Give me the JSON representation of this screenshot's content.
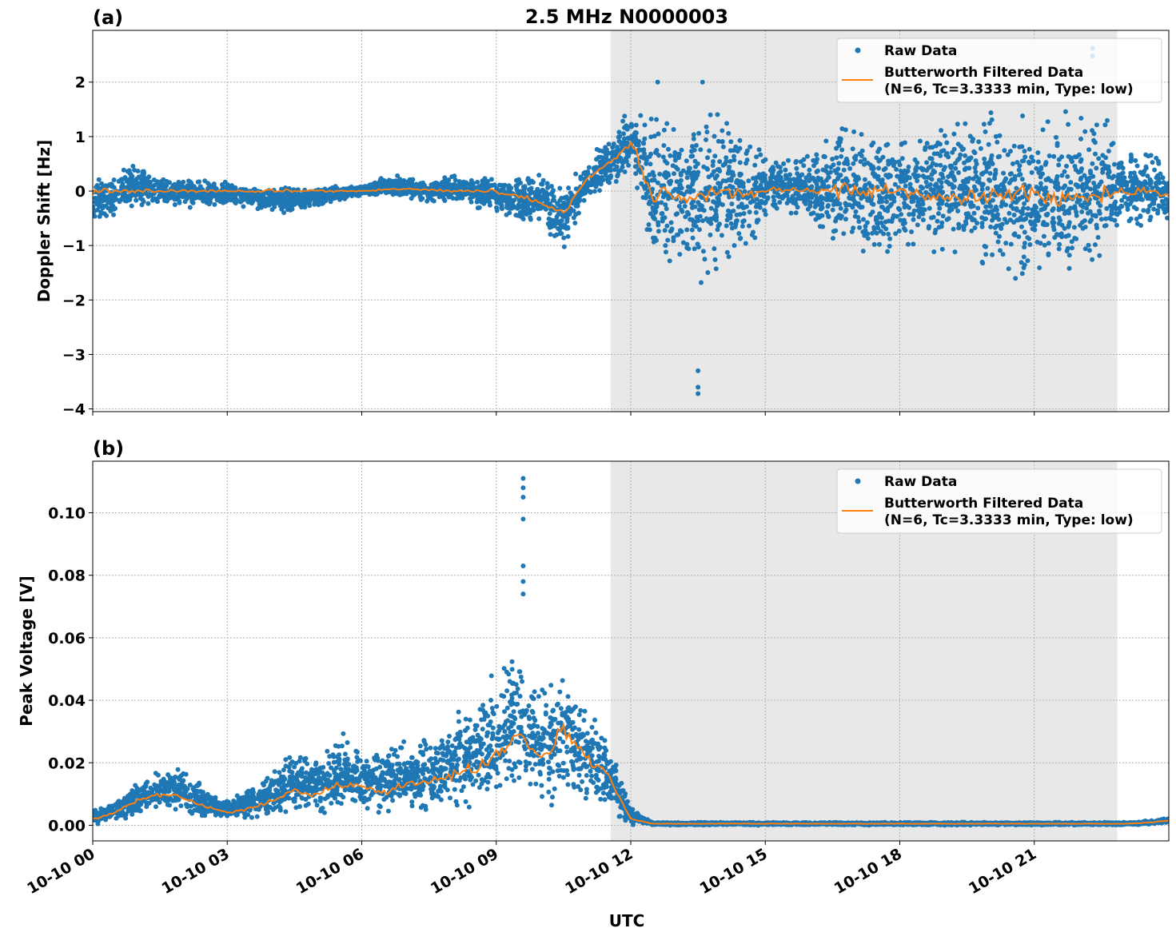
{
  "title": "2.5 MHz N0000003",
  "colors": {
    "raw": "#1f77b4",
    "filtered": "#ff7f0e",
    "shade": "#e8e8e8"
  },
  "chart_data": [
    {
      "type": "scatter",
      "panel_label": "(a)",
      "ylabel": "Doppler Shift [Hz]",
      "xlabel": "",
      "xlim_hours": [
        0,
        24
      ],
      "ylim": [
        -4.05,
        2.95
      ],
      "yticks": [
        2,
        1,
        0,
        -1,
        -2,
        -3,
        -4
      ],
      "ytick_labels": [
        "2",
        "1",
        "0",
        "−1",
        "−2",
        "−3",
        "−4"
      ],
      "grid": true,
      "shaded_span_hours": [
        11.55,
        22.85
      ],
      "legend": {
        "placement": "top-right",
        "raw": "Raw Data",
        "filtered_line1": "Butterworth Filtered Data",
        "filtered_line2": "(N=6, Tc=3.3333 min, Type: low)"
      },
      "bins": [
        [
          0,
          0,
          -0.8,
          0.3
        ],
        [
          0.5,
          0,
          -0.5,
          0.4
        ],
        [
          1,
          0,
          -0.3,
          0.5
        ],
        [
          1.5,
          0,
          -0.3,
          0.3
        ],
        [
          2,
          0,
          -0.3,
          0.3
        ],
        [
          2.5,
          0,
          -0.3,
          0.2
        ],
        [
          3,
          0,
          -0.3,
          0.2
        ],
        [
          3.5,
          0,
          -0.3,
          0.1
        ],
        [
          4,
          0,
          -0.4,
          0.1
        ],
        [
          4.5,
          0,
          -0.4,
          0.1
        ],
        [
          5,
          0,
          -0.3,
          0.1
        ],
        [
          5.5,
          0,
          -0.2,
          0.1
        ],
        [
          6,
          0,
          -0.1,
          0.1
        ],
        [
          6.5,
          0.02,
          -0.1,
          0.3
        ],
        [
          7,
          0.05,
          -0.2,
          0.3
        ],
        [
          7.5,
          0.02,
          -0.2,
          0.2
        ],
        [
          8,
          0,
          -0.2,
          0.3
        ],
        [
          8.5,
          0.02,
          -0.3,
          0.3
        ],
        [
          9,
          0,
          -0.4,
          0.2
        ],
        [
          9.5,
          -0.1,
          -0.6,
          0.3
        ],
        [
          10,
          -0.2,
          -0.7,
          0.4
        ],
        [
          10.5,
          -0.4,
          -1.1,
          0
        ],
        [
          11,
          0.2,
          -0.3,
          0.6
        ],
        [
          11.5,
          0.5,
          0,
          1.0
        ],
        [
          12,
          0.9,
          0.2,
          1.6
        ],
        [
          12.5,
          -0.1,
          -1.5,
          1.5
        ],
        [
          13,
          0,
          -1.5,
          1.6
        ],
        [
          13.5,
          -0.1,
          -1.8,
          1.5
        ],
        [
          14,
          0,
          -1.5,
          1.6
        ],
        [
          14.5,
          -0.1,
          -1.5,
          1.4
        ],
        [
          15,
          0,
          -0.5,
          0.7
        ],
        [
          15.5,
          0.05,
          -0.4,
          0.6
        ],
        [
          16,
          0,
          -0.5,
          0.7
        ],
        [
          16.5,
          0,
          -1.3,
          1.3
        ],
        [
          17,
          0,
          -1.2,
          1.2
        ],
        [
          17.5,
          0,
          -1.2,
          1.2
        ],
        [
          18,
          0,
          -1.2,
          1.3
        ],
        [
          18.5,
          -0.1,
          -1.2,
          1.2
        ],
        [
          19,
          -0.1,
          -1.3,
          1.3
        ],
        [
          19.5,
          -0.1,
          -1.4,
          1.5
        ],
        [
          20,
          -0.1,
          -1.6,
          1.5
        ],
        [
          20.5,
          -0.1,
          -1.8,
          1.6
        ],
        [
          21,
          -0.1,
          -1.8,
          1.5
        ],
        [
          21.5,
          -0.1,
          -1.8,
          1.5
        ],
        [
          22,
          -0.1,
          -1.5,
          1.5
        ],
        [
          22.5,
          -0.1,
          -1.5,
          1.5
        ],
        [
          23,
          0,
          -0.6,
          0.8
        ],
        [
          23.5,
          0,
          -0.8,
          0.8
        ],
        [
          24,
          -0.1,
          -0.6,
          0.5
        ]
      ],
      "outliers": [
        [
          13.5,
          -3.3
        ],
        [
          13.5,
          -3.6
        ],
        [
          13.5,
          -3.72
        ],
        [
          22.3,
          2.62
        ],
        [
          22.3,
          2.48
        ],
        [
          12.6,
          2.0
        ],
        [
          13.6,
          2.0
        ]
      ]
    },
    {
      "type": "scatter",
      "panel_label": "(b)",
      "ylabel": "Peak Voltage [V]",
      "xlabel": "UTC",
      "xlim_hours": [
        0,
        24
      ],
      "ylim": [
        -0.005,
        0.1165
      ],
      "yticks": [
        0,
        0.02,
        0.04,
        0.06,
        0.08,
        0.1
      ],
      "ytick_labels": [
        "0.00",
        "0.02",
        "0.04",
        "0.06",
        "0.08",
        "0.10"
      ],
      "xticks_hours": [
        0,
        3,
        6,
        9,
        12,
        15,
        18,
        21
      ],
      "xtick_labels": [
        "10-10 00",
        "10-10 03",
        "10-10 06",
        "10-10 09",
        "10-10 12",
        "10-10 15",
        "10-10 18",
        "10-10 21"
      ],
      "grid": true,
      "shaded_span_hours": [
        11.55,
        22.85
      ],
      "legend": {
        "placement": "top-right",
        "raw": "Raw Data",
        "filtered_line1": "Butterworth Filtered Data",
        "filtered_line2": "(N=6, Tc=3.3333 min, Type: low)"
      },
      "bins": [
        [
          0,
          0.002,
          0,
          0.005
        ],
        [
          0.5,
          0.004,
          0.001,
          0.008
        ],
        [
          1,
          0.008,
          0.003,
          0.014
        ],
        [
          1.5,
          0.01,
          0.004,
          0.018
        ],
        [
          2,
          0.009,
          0.003,
          0.019
        ],
        [
          2.5,
          0.006,
          0.002,
          0.012
        ],
        [
          3,
          0.004,
          0.002,
          0.008
        ],
        [
          3.5,
          0.005,
          0.002,
          0.012
        ],
        [
          4,
          0.008,
          0.002,
          0.02
        ],
        [
          4.5,
          0.011,
          0.003,
          0.024
        ],
        [
          5,
          0.01,
          0.003,
          0.024
        ],
        [
          5.5,
          0.013,
          0.003,
          0.03
        ],
        [
          6,
          0.012,
          0.003,
          0.026
        ],
        [
          6.5,
          0.01,
          0.003,
          0.025
        ],
        [
          7,
          0.013,
          0.003,
          0.028
        ],
        [
          7.5,
          0.014,
          0.003,
          0.03
        ],
        [
          8,
          0.016,
          0.004,
          0.035
        ],
        [
          8.5,
          0.018,
          0.005,
          0.04
        ],
        [
          9,
          0.022,
          0.006,
          0.05
        ],
        [
          9.5,
          0.03,
          0.008,
          0.06
        ],
        [
          10,
          0.022,
          0.006,
          0.045
        ],
        [
          10.5,
          0.03,
          0.007,
          0.055
        ],
        [
          11,
          0.022,
          0.006,
          0.04
        ],
        [
          11.5,
          0.016,
          0.004,
          0.03
        ],
        [
          12,
          0.002,
          0,
          0.006
        ],
        [
          12.5,
          0.0005,
          0,
          0.001
        ],
        [
          13,
          0.0005,
          0,
          0.001
        ],
        [
          13.5,
          0.0005,
          0,
          0.001
        ],
        [
          14,
          0.0005,
          0,
          0.001
        ],
        [
          14.5,
          0.0005,
          0,
          0.001
        ],
        [
          15,
          0.0005,
          0,
          0.001
        ],
        [
          15.5,
          0.0005,
          0,
          0.001
        ],
        [
          16,
          0.0005,
          0,
          0.001
        ],
        [
          16.5,
          0.0005,
          0,
          0.001
        ],
        [
          17,
          0.0005,
          0,
          0.001
        ],
        [
          17.5,
          0.0005,
          0,
          0.001
        ],
        [
          18,
          0.0005,
          0,
          0.001
        ],
        [
          18.5,
          0.0005,
          0,
          0.001
        ],
        [
          19,
          0.0005,
          0,
          0.001
        ],
        [
          19.5,
          0.0005,
          0,
          0.001
        ],
        [
          20,
          0.0005,
          0,
          0.001
        ],
        [
          20.5,
          0.0005,
          0,
          0.001
        ],
        [
          21,
          0.0005,
          0,
          0.001
        ],
        [
          21.5,
          0.0005,
          0,
          0.001
        ],
        [
          22,
          0.0005,
          0,
          0.001
        ],
        [
          22.5,
          0.0005,
          0,
          0.001
        ],
        [
          23,
          0.0005,
          0,
          0.001
        ],
        [
          23.5,
          0.0008,
          0,
          0.0015
        ],
        [
          24,
          0.0015,
          0.0005,
          0.0025
        ]
      ],
      "outliers": [
        [
          9.6,
          0.111
        ],
        [
          9.6,
          0.108
        ],
        [
          9.6,
          0.105
        ],
        [
          9.6,
          0.098
        ],
        [
          9.6,
          0.083
        ],
        [
          9.6,
          0.078
        ],
        [
          9.6,
          0.074
        ]
      ]
    }
  ]
}
